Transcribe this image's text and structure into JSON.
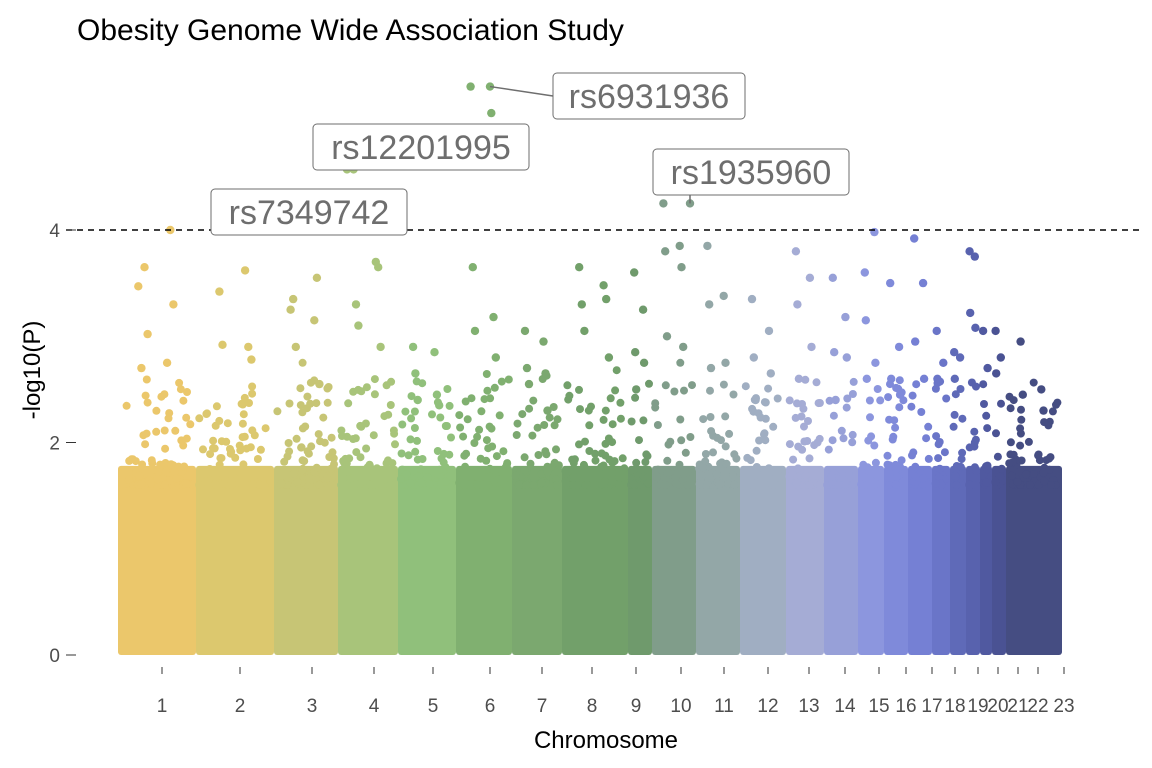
{
  "chart_data": {
    "type": "scatter",
    "subtype": "manhattan",
    "title": "Obesity Genome Wide Association Study",
    "xlabel": "Chromosome",
    "ylabel": "-log10(P)",
    "ylim": [
      0,
      5.3
    ],
    "yticks": [
      0,
      2,
      4
    ],
    "grid": false,
    "legend": "none",
    "threshold_line": 4,
    "chromosomes": [
      {
        "label": "1",
        "color": "#EBC76B",
        "peaks": [
          3.47,
          2.75,
          2.7,
          4.0,
          3.65,
          3.3,
          3.02
        ]
      },
      {
        "label": "2",
        "color": "#DCC86E",
        "peaks": [
          4.0,
          3.62,
          3.42,
          2.9,
          2.92,
          2.78
        ]
      },
      {
        "label": "3",
        "color": "#C7C575",
        "peaks": [
          3.25,
          3.15,
          3.35,
          3.55,
          2.9,
          2.55
        ]
      },
      {
        "label": "4",
        "color": "#A8C47A",
        "peaks": [
          4.57,
          3.7,
          3.3,
          3.65,
          3.1,
          2.9
        ]
      },
      {
        "label": "5",
        "color": "#90C07B",
        "peaks": [
          2.9,
          2.85,
          2.65,
          2.45,
          2.4,
          2.35
        ]
      },
      {
        "label": "6",
        "color": "#80B070",
        "peaks": [
          5.35,
          5.1,
          3.65,
          3.18,
          3.05,
          2.8
        ]
      },
      {
        "label": "7",
        "color": "#7BA86F",
        "peaks": [
          3.05,
          2.95,
          2.7,
          2.65,
          2.55,
          2.3
        ]
      },
      {
        "label": "8",
        "color": "#72A06A",
        "peaks": [
          3.65,
          3.48,
          3.3,
          3.35,
          3.05,
          2.8
        ]
      },
      {
        "label": "9",
        "color": "#6F9A6C",
        "peaks": [
          3.6,
          3.25,
          2.85,
          2.75,
          2.5
        ]
      },
      {
        "label": "10",
        "color": "#809D8A",
        "peaks": [
          4.25,
          3.85,
          3.8,
          3.65,
          3.0,
          2.9
        ]
      },
      {
        "label": "11",
        "color": "#93A7A7",
        "peaks": [
          3.85,
          3.38,
          3.3,
          2.75,
          2.7
        ]
      },
      {
        "label": "12",
        "color": "#A0AEC2",
        "peaks": [
          3.35,
          3.05,
          2.8,
          2.65,
          2.4
        ]
      },
      {
        "label": "13",
        "color": "#A5ACD5",
        "peaks": [
          3.8,
          3.55,
          3.3,
          2.9,
          2.6
        ]
      },
      {
        "label": "14",
        "color": "#97A0D8",
        "peaks": [
          3.55,
          3.18,
          2.85,
          2.8,
          2.4
        ]
      },
      {
        "label": "15",
        "color": "#8C96DE",
        "peaks": [
          3.6,
          3.98,
          3.15,
          2.75,
          2.6
        ]
      },
      {
        "label": "16",
        "color": "#7F8ADA",
        "peaks": [
          3.5,
          2.9,
          2.6,
          2.45
        ]
      },
      {
        "label": "17",
        "color": "#7580D4",
        "peaks": [
          3.92,
          3.5,
          2.95,
          2.6
        ]
      },
      {
        "label": "18",
        "color": "#6A75C8",
        "peaks": [
          3.05,
          2.75,
          2.6
        ]
      },
      {
        "label": "19",
        "color": "#5F6AB8",
        "peaks": [
          2.85,
          2.8,
          2.6
        ]
      },
      {
        "label": "20",
        "color": "#5862AE",
        "peaks": [
          3.8,
          3.75,
          3.22,
          3.08
        ]
      },
      {
        "label": "21",
        "color": "#5059A0",
        "peaks": [
          3.05,
          2.7
        ]
      },
      {
        "label": "22",
        "color": "#4A5293",
        "peaks": [
          3.05,
          2.8,
          2.65
        ]
      },
      {
        "label": "23",
        "color": "#454D82",
        "peaks": [
          2.95,
          2.5,
          2.45,
          2.3
        ]
      }
    ],
    "annotations": [
      {
        "label": "rs6931936",
        "chromosome": "6",
        "value": 5.35
      },
      {
        "label": "rs12201995",
        "chromosome": "4",
        "value": 4.57
      },
      {
        "label": "rs1935960",
        "chromosome": "10",
        "value": 4.25
      },
      {
        "label": "rs7349742",
        "chromosome": "2",
        "value": 4.0
      }
    ]
  }
}
